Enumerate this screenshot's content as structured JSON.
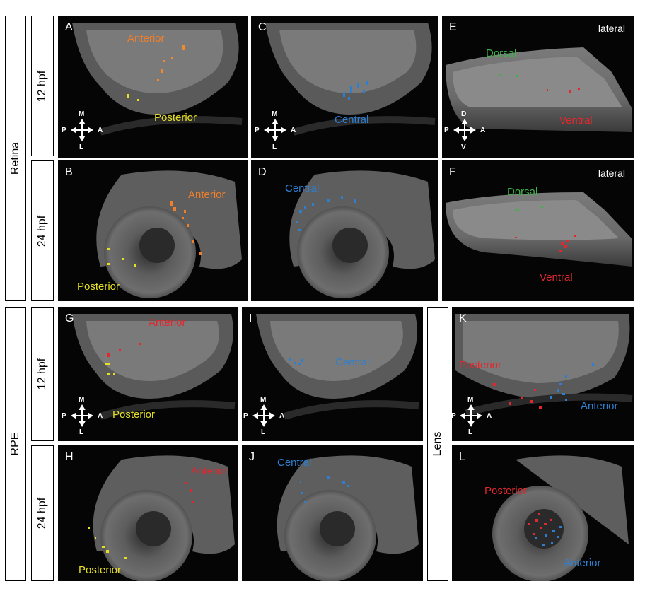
{
  "groups": {
    "retina": "Retina",
    "rpe": "RPE",
    "lens": "Lens"
  },
  "stages": {
    "s12": "12 hpf",
    "s24": "24 hpf"
  },
  "view_label": "lateral",
  "axes": {
    "M": "M",
    "L": "L",
    "P": "P",
    "A": "A",
    "D": "D",
    "V": "V"
  },
  "regions": {
    "anterior": "Anterior",
    "posterior": "Posterior",
    "central": "Central",
    "dorsal": "Dorsal",
    "ventral": "Ventral"
  },
  "panels": {
    "A": "A",
    "B": "B",
    "C": "C",
    "D": "D",
    "E": "E",
    "F": "F",
    "G": "G",
    "H": "H",
    "I": "I",
    "J": "J",
    "K": "K",
    "L": "L"
  },
  "colors": {
    "anterior_orange": "#f07f2c",
    "posterior_yellow": "#e6e021",
    "central_blue": "#2f7fd0",
    "dorsal_green": "#3fb34a",
    "ventral_red": "#e0282e",
    "red": "#e0282e"
  }
}
